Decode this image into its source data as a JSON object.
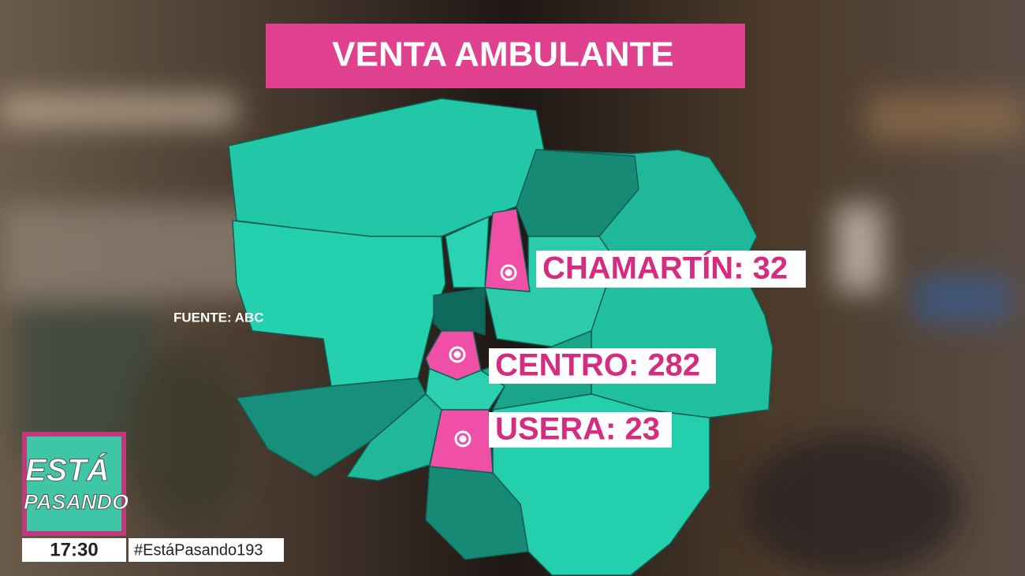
{
  "title": "VENTA AMBULANTE",
  "source": "FUENTE: ABC",
  "markers": [
    {
      "label": "CHAMARTÍN: 32"
    },
    {
      "label": "CENTRO: 282"
    },
    {
      "label": "USERA: 23"
    }
  ],
  "logo": {
    "line1": "ESTÁ",
    "line2": "PASANDO"
  },
  "clock": "17:30",
  "hashtag": "#EstáPasando193"
}
